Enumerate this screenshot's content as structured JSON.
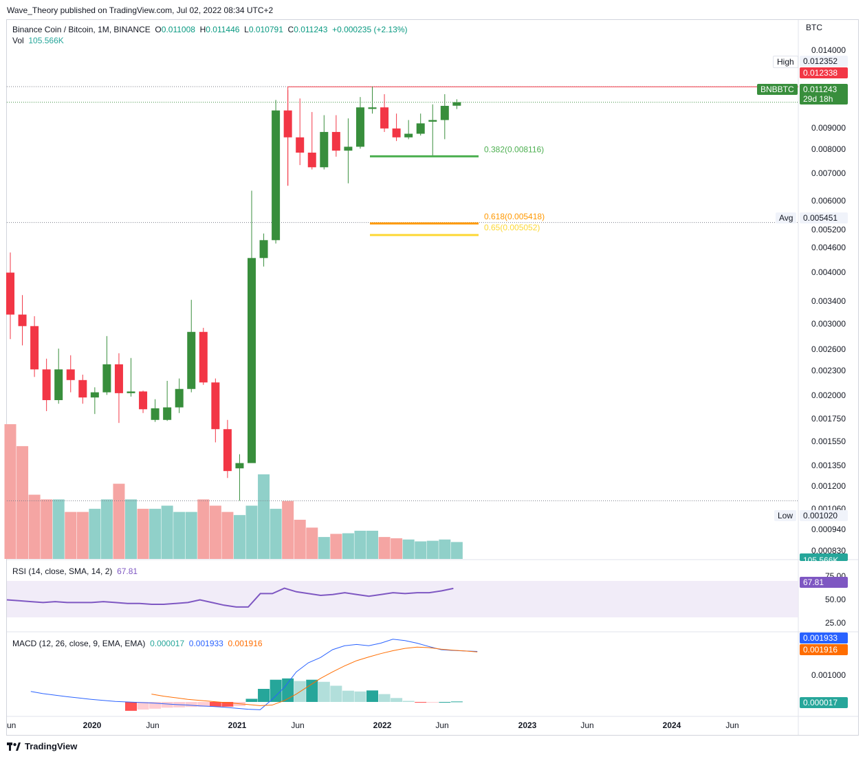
{
  "header": {
    "publisher": "Wave_Theory published on TradingView.com, Jul 02, 2022 08:34 UTC+2"
  },
  "legend": {
    "title": "Binance Coin / Bitcoin, 1M, BINANCE",
    "o_label": "O",
    "o": "0.011008",
    "h_label": "H",
    "h": "0.011446",
    "l_label": "L",
    "l": "0.010791",
    "c_label": "C",
    "c": "0.011243",
    "change": "+0.000235 (+2.13%)",
    "vol_label": "Vol",
    "vol": "105.566K"
  },
  "rsi_legend": {
    "label": "RSI (14, close, SMA, 14, 2)",
    "value": "67.81"
  },
  "macd_legend": {
    "label": "MACD (12, 26, close, 9, EMA, EMA)",
    "v1": "0.000017",
    "v2": "0.001933",
    "v3": "0.001916"
  },
  "price_axis": {
    "unit": "BTC",
    "ticks": [
      "0.014000",
      "0.009000",
      "0.008000",
      "0.007000",
      "0.006000",
      "0.005200",
      "0.004600",
      "0.004000",
      "0.003400",
      "0.003000",
      "0.002600",
      "0.002300",
      "0.002000",
      "0.001750",
      "0.001550",
      "0.001350",
      "0.001200",
      "0.001060",
      "0.000940",
      "0.000830"
    ],
    "high_label": "High",
    "high_value": "0.012352",
    "last_high_tag": "0.012338",
    "symbol_tag": "BNBBTC",
    "price_tag": "0.011243",
    "countdown": "29d 18h",
    "avg_label": "Avg",
    "avg_value": "0.005451",
    "low_label": "Low",
    "low_value": "0.001020",
    "vol_tag": "105.566K"
  },
  "rsi_axis": {
    "ticks": [
      "75.00",
      "50.00",
      "25.00"
    ],
    "value_tag": "67.81"
  },
  "macd_axis": {
    "ticks": [
      "0.001000"
    ],
    "tag1": "0.001933",
    "tag2": "0.001916",
    "tag3": "0.000017"
  },
  "time_axis": [
    {
      "label": "un",
      "bold": false
    },
    {
      "label": "2020",
      "bold": true
    },
    {
      "label": "Jun",
      "bold": false
    },
    {
      "label": "2021",
      "bold": true
    },
    {
      "label": "Jun",
      "bold": false
    },
    {
      "label": "2022",
      "bold": true
    },
    {
      "label": "Jun",
      "bold": false
    },
    {
      "label": "2023",
      "bold": true
    },
    {
      "label": "Jun",
      "bold": false
    },
    {
      "label": "2024",
      "bold": true
    },
    {
      "label": "Jun",
      "bold": false
    }
  ],
  "fib_levels": [
    {
      "label": "0.382(0.008116)",
      "color": "#4caf50",
      "price": 0.008116
    },
    {
      "label": "0.618(0.005418)",
      "color": "#ff9800",
      "price": 0.005418
    },
    {
      "label": "0.65(0.005052)",
      "color": "#fdd835",
      "price": 0.005052
    }
  ],
  "colors": {
    "up": "#388e3c",
    "down": "#f23645",
    "vol_up": "#90d0c9",
    "vol_down": "#f5a5a3",
    "rsi": "#7e57c2",
    "macd": "#2962ff",
    "signal": "#ff6d00",
    "hist_up_strong": "#26a69a",
    "hist_up_weak": "#b2dfdb",
    "hist_down_strong": "#ff5252",
    "hist_down_weak": "#ffcdd2"
  },
  "chart_data": {
    "type": "candlestick",
    "title": "Binance Coin / Bitcoin, 1M, BINANCE",
    "y_scale": "log",
    "ylim": [
      0.00078,
      0.0145
    ],
    "ohlc": [
      {
        "o": 0.00403,
        "h": 0.00455,
        "l": 0.0027,
        "c": 0.00313
      },
      {
        "o": 0.00313,
        "h": 0.00352,
        "l": 0.0026,
        "c": 0.00292
      },
      {
        "o": 0.00292,
        "h": 0.0031,
        "l": 0.00215,
        "c": 0.00225
      },
      {
        "o": 0.00225,
        "h": 0.0024,
        "l": 0.00175,
        "c": 0.00187
      },
      {
        "o": 0.00187,
        "h": 0.00255,
        "l": 0.00183,
        "c": 0.00225
      },
      {
        "o": 0.00225,
        "h": 0.00245,
        "l": 0.00196,
        "c": 0.00211
      },
      {
        "o": 0.00211,
        "h": 0.00218,
        "l": 0.00183,
        "c": 0.0019
      },
      {
        "o": 0.0019,
        "h": 0.00202,
        "l": 0.00172,
        "c": 0.00196
      },
      {
        "o": 0.00196,
        "h": 0.00275,
        "l": 0.00193,
        "c": 0.00232
      },
      {
        "o": 0.00232,
        "h": 0.00248,
        "l": 0.00163,
        "c": 0.00195
      },
      {
        "o": 0.00195,
        "h": 0.00241,
        "l": 0.00191,
        "c": 0.00197
      },
      {
        "o": 0.00197,
        "h": 0.00198,
        "l": 0.00173,
        "c": 0.00177
      },
      {
        "o": 0.00166,
        "h": 0.00188,
        "l": 0.00164,
        "c": 0.00178
      },
      {
        "o": 0.00166,
        "h": 0.0021,
        "l": 0.00165,
        "c": 0.00179
      },
      {
        "o": 0.00179,
        "h": 0.00213,
        "l": 0.00173,
        "c": 0.002
      },
      {
        "o": 0.002,
        "h": 0.00342,
        "l": 0.00196,
        "c": 0.00282
      },
      {
        "o": 0.00282,
        "h": 0.00289,
        "l": 0.00205,
        "c": 0.00208
      },
      {
        "o": 0.00208,
        "h": 0.00213,
        "l": 0.00145,
        "c": 0.00157
      },
      {
        "o": 0.00157,
        "h": 0.00166,
        "l": 0.00117,
        "c": 0.00122
      },
      {
        "o": 0.00124,
        "h": 0.00135,
        "l": 0.00102,
        "c": 0.00128
      },
      {
        "o": 0.00128,
        "h": 0.0066,
        "l": 0.00128,
        "c": 0.0044
      },
      {
        "o": 0.0044,
        "h": 0.0051,
        "l": 0.00418,
        "c": 0.0049
      },
      {
        "o": 0.0049,
        "h": 0.0114,
        "l": 0.0048,
        "c": 0.0107
      },
      {
        "o": 0.0107,
        "h": 0.0121,
        "l": 0.0068,
        "c": 0.0091
      },
      {
        "o": 0.0091,
        "h": 0.0115,
        "l": 0.0077,
        "c": 0.0083
      },
      {
        "o": 0.0083,
        "h": 0.0106,
        "l": 0.0075,
        "c": 0.0076
      },
      {
        "o": 0.0076,
        "h": 0.0104,
        "l": 0.0075,
        "c": 0.0094
      },
      {
        "o": 0.0094,
        "h": 0.0104,
        "l": 0.0081,
        "c": 0.0084
      },
      {
        "o": 0.0084,
        "h": 0.0102,
        "l": 0.0069,
        "c": 0.0086
      },
      {
        "o": 0.0086,
        "h": 0.0116,
        "l": 0.0085,
        "c": 0.0109
      },
      {
        "o": 0.0108,
        "h": 0.01235,
        "l": 0.0105,
        "c": 0.0109
      },
      {
        "o": 0.0109,
        "h": 0.0118,
        "l": 0.0094,
        "c": 0.0096
      },
      {
        "o": 0.0096,
        "h": 0.0105,
        "l": 0.0089,
        "c": 0.0091
      },
      {
        "o": 0.0091,
        "h": 0.0101,
        "l": 0.009,
        "c": 0.0093
      },
      {
        "o": 0.0093,
        "h": 0.0105,
        "l": 0.0092,
        "c": 0.0099
      },
      {
        "o": 0.01,
        "h": 0.0111,
        "l": 0.0081,
        "c": 0.0101
      },
      {
        "o": 0.0101,
        "h": 0.0118,
        "l": 0.009,
        "c": 0.011
      },
      {
        "o": 0.01101,
        "h": 0.011446,
        "l": 0.010791,
        "c": 0.011243
      }
    ],
    "volume": [
      430,
      360,
      205,
      190,
      190,
      150,
      150,
      160,
      190,
      240,
      190,
      160,
      160,
      170,
      150,
      150,
      190,
      170,
      150,
      140,
      170,
      270,
      160,
      185,
      125,
      100,
      70,
      80,
      82,
      90,
      90,
      70,
      66,
      62,
      56,
      58,
      62,
      54
    ],
    "rsi": [
      55,
      54,
      53,
      52,
      53,
      52,
      52,
      52,
      53,
      52,
      51,
      51,
      50,
      50,
      51,
      52,
      55,
      52,
      49,
      47,
      47,
      62,
      62,
      68,
      64,
      62,
      60,
      61,
      63,
      61,
      59,
      61,
      63,
      62,
      63,
      63,
      65,
      67.8
    ],
    "macd_line": [
      0.0004,
      0.00032,
      0.00026,
      0.0002,
      0.00015,
      0.0001,
      6e-05,
      2e-05,
      0.0,
      -2e-05,
      -4e-05,
      -7e-05,
      -0.0001,
      -0.00012,
      -0.00015,
      -0.00017,
      -0.0002,
      -0.00024,
      -0.00028,
      -0.0003,
      0.0001,
      0.00055,
      0.00115,
      0.0015,
      0.0017,
      0.002,
      0.00215,
      0.0022,
      0.00215,
      0.00225,
      0.0024,
      0.00235,
      0.00225,
      0.00212,
      0.002,
      0.00197,
      0.00195,
      0.001933
    ],
    "signal_line": [
      null,
      null,
      null,
      null,
      null,
      null,
      null,
      null,
      null,
      null,
      0.0003,
      0.00022,
      0.00016,
      0.0001,
      6e-05,
      2e-05,
      -2e-05,
      -6e-05,
      -0.0001,
      -0.00014,
      -0.00012,
      5e-05,
      0.0003,
      0.0006,
      0.0009,
      0.00115,
      0.00138,
      0.00158,
      0.00172,
      0.00185,
      0.00196,
      0.00205,
      0.0021,
      0.00208,
      0.00202,
      0.00198,
      0.00195,
      0.001916
    ],
    "macd_hist": [
      null,
      null,
      null,
      null,
      null,
      null,
      null,
      null,
      null,
      null,
      -0.00034,
      -0.00029,
      -0.00026,
      -0.00022,
      -0.00021,
      -0.00019,
      -0.00018,
      -0.00018,
      -0.00018,
      -0.00016,
      0.00012,
      0.0005,
      0.00085,
      0.0009,
      0.0008,
      0.00085,
      0.00077,
      0.00062,
      0.00043,
      0.0004,
      0.00044,
      0.0003,
      0.00015,
      4e-05,
      -2e-05,
      -1e-05,
      0.0,
      1.7e-05
    ]
  }
}
